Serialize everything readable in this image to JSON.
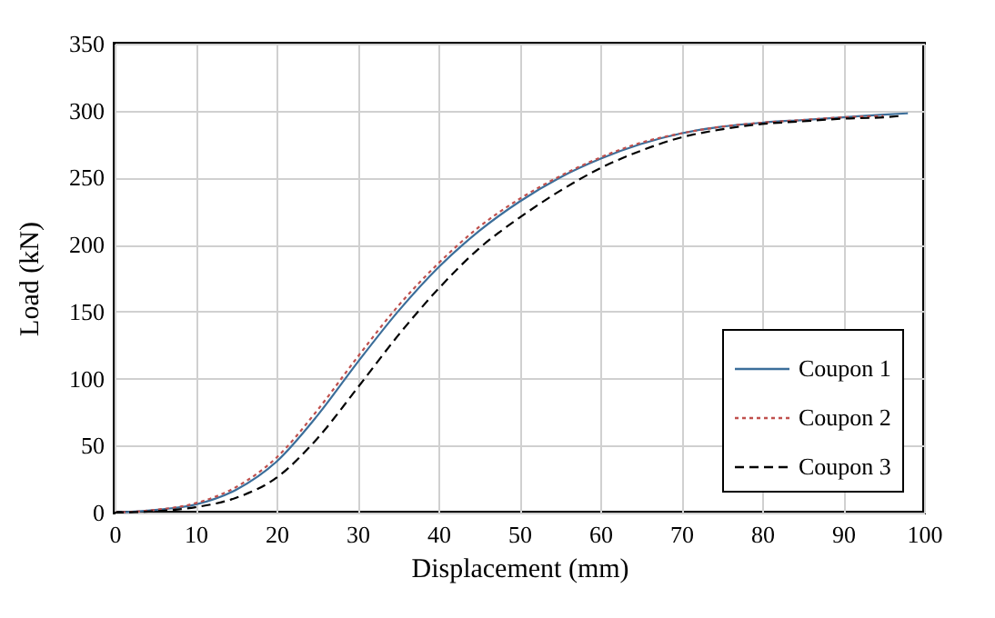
{
  "chart_data": {
    "type": "line",
    "xlabel": "Displacement (mm)",
    "ylabel": "Load (kN)",
    "xlim": [
      0,
      100
    ],
    "xticks": [
      0,
      10,
      20,
      30,
      40,
      50,
      60,
      70,
      80,
      90,
      100
    ],
    "ylim": [
      0,
      350
    ],
    "yticks": [
      0,
      50,
      100,
      150,
      200,
      250,
      300,
      350
    ],
    "grid": true,
    "legend": "bottom right",
    "series": [
      {
        "name": "Coupon 1",
        "color": "#3b6e9a",
        "line_style": "solid",
        "x": [
          0,
          5,
          10,
          15,
          20,
          25,
          30,
          35,
          40,
          45,
          50,
          55,
          60,
          65,
          70,
          75,
          80,
          85,
          90,
          95,
          98
        ],
        "values": [
          0,
          2,
          6,
          17,
          38,
          72,
          112,
          150,
          183,
          210,
          232,
          250,
          264,
          275,
          283,
          288,
          291,
          293,
          295,
          297,
          298
        ]
      },
      {
        "name": "Coupon 2",
        "color": "#c0504d",
        "line_style": "dotted",
        "x": [
          0,
          5,
          10,
          15,
          20,
          25,
          30,
          35,
          40,
          45,
          50,
          55,
          60,
          65,
          70,
          75,
          80,
          85,
          90,
          95
        ],
        "values": [
          0,
          2,
          7,
          19,
          41,
          76,
          116,
          154,
          186,
          213,
          234,
          251,
          265,
          276,
          283,
          288,
          291,
          293,
          295,
          296
        ]
      },
      {
        "name": "Coupon 3",
        "color": "#000000",
        "line_style": "dashed",
        "x": [
          0,
          5,
          10,
          15,
          20,
          25,
          30,
          35,
          40,
          45,
          50,
          55,
          60,
          65,
          70,
          75,
          80,
          85,
          90,
          95,
          97
        ],
        "values": [
          0,
          1,
          4,
          11,
          26,
          55,
          93,
          132,
          167,
          197,
          220,
          240,
          257,
          270,
          280,
          286,
          290,
          292,
          294,
          295,
          296
        ]
      }
    ]
  }
}
